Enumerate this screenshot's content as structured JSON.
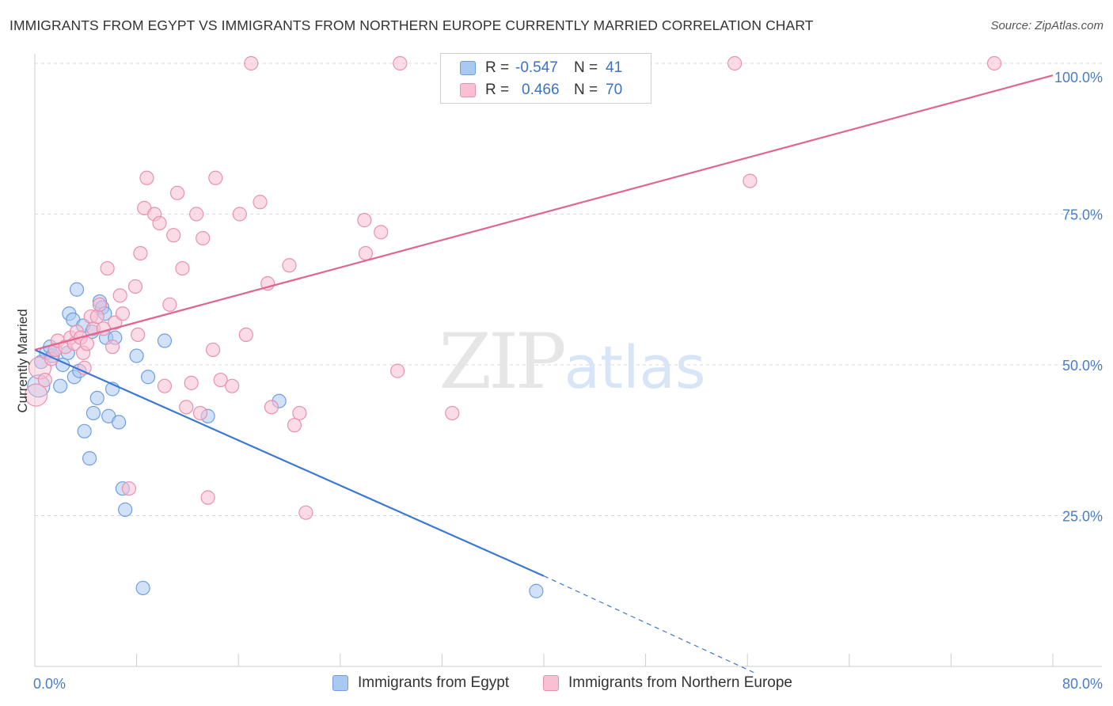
{
  "header": {
    "title": "IMMIGRANTS FROM EGYPT VS IMMIGRANTS FROM NORTHERN EUROPE CURRENTLY MARRIED CORRELATION CHART",
    "source": "Source: ZipAtlas.com"
  },
  "legend": {
    "rows": [
      {
        "r_label": "R =",
        "r_value": "-0.547",
        "n_label": "N =",
        "n_value": "41",
        "color": "#a9c9f2",
        "border": "#6f9fe0"
      },
      {
        "r_label": "R =",
        "r_value": "0.466",
        "n_label": "N = ",
        "n_value": "70",
        "color": "#f8c0d2",
        "border": "#e891ae"
      }
    ]
  },
  "bottom_legend": {
    "items": [
      {
        "label": "Immigrants from Egypt",
        "color": "#a9c9f2",
        "border": "#6f9fe0"
      },
      {
        "label": "Immigrants from Northern Europe",
        "color": "#f8c0d2",
        "border": "#e891ae"
      }
    ]
  },
  "watermark": {
    "zip": "ZIP",
    "atlas": "atlas"
  },
  "chart_data": {
    "type": "scatter",
    "ylabel": "Currently Married",
    "xlabel": "",
    "xlim": [
      0,
      80
    ],
    "ylim": [
      0,
      100
    ],
    "x_tick_labels": [
      {
        "value": 0,
        "label": "0.0%"
      },
      {
        "value": 80,
        "label": "80.0%"
      }
    ],
    "y_tick_labels": [
      {
        "value": 100,
        "label": "100.0%"
      },
      {
        "value": 75,
        "label": "75.0%"
      },
      {
        "value": 50,
        "label": "50.0%"
      },
      {
        "value": 25,
        "label": "25.0%"
      }
    ],
    "grid_y": [
      25,
      50,
      75,
      100
    ],
    "series": [
      {
        "name": "Immigrants from Egypt",
        "color": "#a9c9f2",
        "stroke": "#6f9fe0",
        "line_color": "#3a78d4",
        "trend": {
          "x0": 0,
          "y0": 52.5,
          "x1": 40,
          "y1": 15.0,
          "dash_to_x": 56.5,
          "dash_to_y": -1
        },
        "points": [
          [
            0.3,
            46.5
          ],
          [
            0.5,
            50.5
          ],
          [
            0.9,
            52.0
          ],
          [
            1.2,
            53.0
          ],
          [
            1.4,
            51.5
          ],
          [
            1.6,
            52.5
          ],
          [
            2.0,
            46.5
          ],
          [
            2.2,
            50.0
          ],
          [
            2.6,
            52.0
          ],
          [
            2.7,
            58.5
          ],
          [
            3.0,
            57.5
          ],
          [
            3.1,
            48.0
          ],
          [
            3.3,
            62.5
          ],
          [
            3.5,
            49.0
          ],
          [
            3.8,
            56.5
          ],
          [
            3.9,
            39.0
          ],
          [
            4.3,
            34.5
          ],
          [
            4.5,
            55.5
          ],
          [
            4.6,
            42.0
          ],
          [
            4.9,
            44.5
          ],
          [
            5.1,
            60.5
          ],
          [
            5.3,
            59.5
          ],
          [
            5.5,
            58.5
          ],
          [
            5.6,
            54.5
          ],
          [
            5.8,
            41.5
          ],
          [
            6.1,
            46.0
          ],
          [
            6.3,
            54.5
          ],
          [
            6.6,
            40.5
          ],
          [
            6.9,
            29.5
          ],
          [
            7.1,
            26.0
          ],
          [
            8.0,
            51.5
          ],
          [
            8.5,
            13.0
          ],
          [
            8.9,
            48.0
          ],
          [
            10.2,
            54.0
          ],
          [
            13.6,
            41.5
          ],
          [
            19.2,
            44.0
          ],
          [
            39.4,
            12.5
          ]
        ]
      },
      {
        "name": "Immigrants from Northern Europe",
        "color": "#f8c0d2",
        "stroke": "#e891ae",
        "line_color": "#e06590",
        "trend": {
          "x0": 0,
          "y0": 52.5,
          "x1": 80,
          "y1": 98.0
        },
        "points": [
          [
            0.1,
            45.0
          ],
          [
            0.4,
            49.5
          ],
          [
            0.8,
            47.5
          ],
          [
            1.3,
            51.0
          ],
          [
            1.6,
            52.5
          ],
          [
            1.8,
            54.0
          ],
          [
            2.4,
            53.0
          ],
          [
            2.8,
            54.5
          ],
          [
            3.1,
            53.5
          ],
          [
            3.3,
            55.5
          ],
          [
            3.6,
            54.5
          ],
          [
            3.8,
            52.0
          ],
          [
            3.9,
            49.5
          ],
          [
            4.1,
            53.5
          ],
          [
            4.4,
            58.0
          ],
          [
            4.6,
            56.0
          ],
          [
            4.9,
            58.0
          ],
          [
            5.1,
            60.0
          ],
          [
            5.4,
            56.0
          ],
          [
            5.7,
            66.0
          ],
          [
            6.1,
            53.0
          ],
          [
            6.3,
            57.0
          ],
          [
            6.7,
            61.5
          ],
          [
            6.9,
            58.5
          ],
          [
            7.4,
            29.5
          ],
          [
            7.9,
            63.0
          ],
          [
            8.1,
            55.0
          ],
          [
            8.3,
            68.5
          ],
          [
            8.6,
            76.0
          ],
          [
            8.8,
            81.0
          ],
          [
            9.4,
            75.0
          ],
          [
            9.8,
            73.5
          ],
          [
            10.2,
            46.5
          ],
          [
            10.6,
            60.0
          ],
          [
            10.9,
            71.5
          ],
          [
            11.2,
            78.5
          ],
          [
            11.6,
            66.0
          ],
          [
            11.9,
            43.0
          ],
          [
            12.3,
            47.0
          ],
          [
            12.7,
            75.0
          ],
          [
            13.0,
            42.0
          ],
          [
            13.2,
            71.0
          ],
          [
            13.6,
            28.0
          ],
          [
            14.0,
            52.5
          ],
          [
            14.2,
            81.0
          ],
          [
            14.6,
            47.5
          ],
          [
            15.5,
            46.5
          ],
          [
            16.1,
            75.0
          ],
          [
            16.6,
            55.0
          ],
          [
            17.0,
            100.0
          ],
          [
            17.7,
            77.0
          ],
          [
            18.3,
            63.5
          ],
          [
            18.6,
            43.0
          ],
          [
            20.0,
            66.5
          ],
          [
            20.4,
            40.0
          ],
          [
            20.8,
            42.0
          ],
          [
            21.3,
            25.5
          ],
          [
            25.9,
            74.0
          ],
          [
            26.0,
            68.5
          ],
          [
            27.2,
            72.0
          ],
          [
            28.5,
            49.0
          ],
          [
            28.7,
            100.0
          ],
          [
            32.8,
            42.0
          ],
          [
            55.0,
            100.0
          ],
          [
            56.2,
            80.5
          ],
          [
            75.4,
            100.0
          ]
        ]
      }
    ]
  }
}
